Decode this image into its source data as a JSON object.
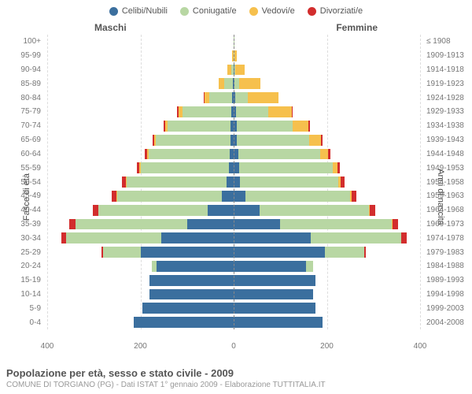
{
  "legend": [
    {
      "label": "Celibi/Nubili",
      "color": "#3b6f9e"
    },
    {
      "label": "Coniugati/e",
      "color": "#b8d7a3"
    },
    {
      "label": "Vedovi/e",
      "color": "#f6c04d"
    },
    {
      "label": "Divorziati/e",
      "color": "#d22d2d"
    }
  ],
  "headers": {
    "male": "Maschi",
    "female": "Femmine"
  },
  "axis": {
    "left_title": "Fasce di età",
    "right_title": "Anni di nascita",
    "x_max": 400,
    "x_ticks_left": [
      400,
      200,
      0
    ],
    "x_ticks_right": [
      200,
      400
    ]
  },
  "colors": {
    "grid": "#dddddd",
    "zero": "#888888",
    "bg": "#ffffff",
    "text": "#555555",
    "text_muted": "#999999"
  },
  "age_labels": [
    "100+",
    "95-99",
    "90-94",
    "85-89",
    "80-84",
    "75-79",
    "70-74",
    "65-69",
    "60-64",
    "55-59",
    "50-54",
    "45-49",
    "40-44",
    "35-39",
    "30-34",
    "25-29",
    "20-24",
    "15-19",
    "10-14",
    "5-9",
    "0-4"
  ],
  "year_labels": [
    "≤ 1908",
    "1909-1913",
    "1914-1918",
    "1919-1923",
    "1924-1928",
    "1929-1933",
    "1934-1938",
    "1939-1943",
    "1944-1948",
    "1949-1953",
    "1954-1958",
    "1959-1963",
    "1964-1968",
    "1969-1973",
    "1974-1978",
    "1979-1983",
    "1984-1988",
    "1989-1993",
    "1994-1998",
    "1999-2003",
    "2004-2008"
  ],
  "rows": [
    {
      "m": [
        0,
        0,
        0,
        0
      ],
      "f": [
        0,
        2,
        0,
        0
      ]
    },
    {
      "m": [
        0,
        0,
        3,
        0
      ],
      "f": [
        0,
        1,
        5,
        0
      ]
    },
    {
      "m": [
        0,
        5,
        8,
        0
      ],
      "f": [
        1,
        3,
        20,
        0
      ]
    },
    {
      "m": [
        2,
        18,
        12,
        0
      ],
      "f": [
        2,
        10,
        45,
        0
      ]
    },
    {
      "m": [
        3,
        50,
        10,
        2
      ],
      "f": [
        3,
        28,
        65,
        0
      ]
    },
    {
      "m": [
        5,
        105,
        8,
        3
      ],
      "f": [
        5,
        70,
        50,
        2
      ]
    },
    {
      "m": [
        6,
        135,
        6,
        3
      ],
      "f": [
        6,
        120,
        35,
        2
      ]
    },
    {
      "m": [
        7,
        160,
        3,
        4
      ],
      "f": [
        7,
        155,
        25,
        3
      ]
    },
    {
      "m": [
        8,
        175,
        2,
        5
      ],
      "f": [
        10,
        175,
        18,
        5
      ]
    },
    {
      "m": [
        10,
        190,
        2,
        6
      ],
      "f": [
        12,
        200,
        10,
        6
      ]
    },
    {
      "m": [
        15,
        215,
        1,
        8
      ],
      "f": [
        14,
        210,
        6,
        8
      ]
    },
    {
      "m": [
        25,
        225,
        1,
        10
      ],
      "f": [
        25,
        225,
        4,
        10
      ]
    },
    {
      "m": [
        55,
        235,
        0,
        12
      ],
      "f": [
        55,
        235,
        2,
        12
      ]
    },
    {
      "m": [
        100,
        240,
        0,
        12
      ],
      "f": [
        100,
        240,
        1,
        12
      ]
    },
    {
      "m": [
        155,
        205,
        0,
        10
      ],
      "f": [
        165,
        195,
        0,
        12
      ]
    },
    {
      "m": [
        200,
        80,
        0,
        3
      ],
      "f": [
        195,
        85,
        0,
        3
      ]
    },
    {
      "m": [
        165,
        10,
        0,
        0
      ],
      "f": [
        155,
        15,
        0,
        0
      ]
    },
    {
      "m": [
        180,
        0,
        0,
        0
      ],
      "f": [
        175,
        0,
        0,
        0
      ]
    },
    {
      "m": [
        180,
        0,
        0,
        0
      ],
      "f": [
        170,
        0,
        0,
        0
      ]
    },
    {
      "m": [
        195,
        0,
        0,
        0
      ],
      "f": [
        175,
        0,
        0,
        0
      ]
    },
    {
      "m": [
        215,
        0,
        0,
        0
      ],
      "f": [
        190,
        0,
        0,
        0
      ]
    }
  ],
  "footer": {
    "title": "Popolazione per età, sesso e stato civile - 2009",
    "subtitle": "COMUNE DI TORGIANO (PG) - Dati ISTAT 1° gennaio 2009 - Elaborazione TUTTITALIA.IT"
  }
}
